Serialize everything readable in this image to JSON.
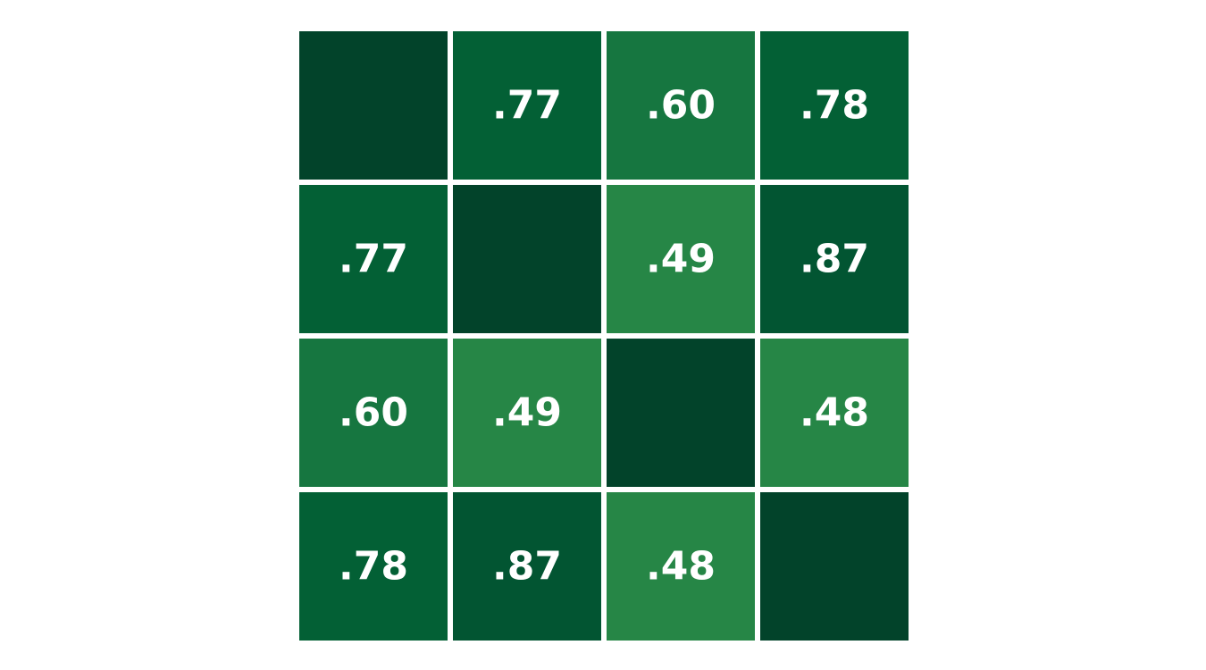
{
  "chart_data": {
    "type": "heatmap",
    "rows": 4,
    "cols": 4,
    "values": [
      [
        null,
        0.77,
        0.6,
        0.78
      ],
      [
        0.77,
        null,
        0.49,
        0.87
      ],
      [
        0.6,
        0.49,
        null,
        0.48
      ],
      [
        0.78,
        0.87,
        0.48,
        null
      ]
    ],
    "labels": [
      [
        "",
        ".77",
        ".60",
        ".78"
      ],
      [
        ".77",
        "",
        ".49",
        ".87"
      ],
      [
        ".60",
        ".49",
        "",
        ".48"
      ],
      [
        ".78",
        ".87",
        ".48",
        ""
      ]
    ],
    "diagonal_color": "#02432a",
    "colormap": "Greens",
    "colors": {
      "0.87": "#025532",
      "0.78": "#036035",
      "0.77": "#036035",
      "0.60": "#167640",
      "0.49": "#268646",
      "0.48": "#268646"
    },
    "label_color": "#ffffff",
    "grid_line_color": "#ffffff"
  }
}
